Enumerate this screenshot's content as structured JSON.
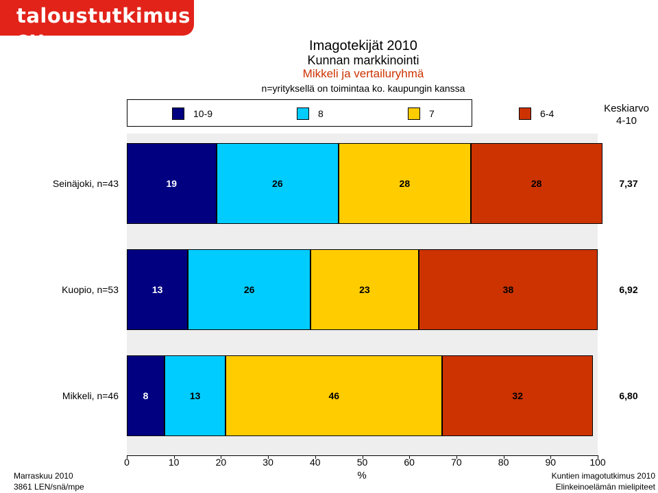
{
  "logo_text": "taloustutkimus oy",
  "titles": {
    "line1": "Imagotekijät 2010",
    "line2": "Kunnan markkinointi",
    "line3": "Mikkeli ja vertailuryhmä",
    "line4": "n=yrityksellä on toimintaa ko. kaupungin kanssa"
  },
  "keskiarvo": {
    "line1": "Keskiarvo",
    "line2": "4-10"
  },
  "footer": {
    "left1": "Marraskuu 2010",
    "left2": "3861 LEN/snä/mpe",
    "right1": "Kuntien imagotutkimus 2010",
    "right2": "Elinkeinoelämän mielipiteet"
  },
  "chart_data": {
    "type": "bar",
    "orientation": "horizontal",
    "stacked": true,
    "xlabel": "%",
    "xlim": [
      0,
      100
    ],
    "xticks": [
      "0",
      "10",
      "20",
      "30",
      "40",
      "50",
      "60",
      "70",
      "80",
      "90",
      "100"
    ],
    "categories": [
      "Seinäjoki, n=43",
      "Kuopio, n=53",
      "Mikkeli, n=46"
    ],
    "averages": [
      "7,37",
      "6,92",
      "6,80"
    ],
    "series": [
      {
        "name": "10-9",
        "color": "#000080",
        "values": [
          19,
          13,
          8
        ]
      },
      {
        "name": "8",
        "color": "#00ccff",
        "values": [
          26,
          26,
          13
        ]
      },
      {
        "name": "7",
        "color": "#ffcc00",
        "values": [
          28,
          23,
          46
        ]
      },
      {
        "name": "6-4",
        "color": "#cc3300",
        "values": [
          28,
          38,
          32
        ]
      }
    ],
    "legend_position": "top",
    "grid": false
  }
}
